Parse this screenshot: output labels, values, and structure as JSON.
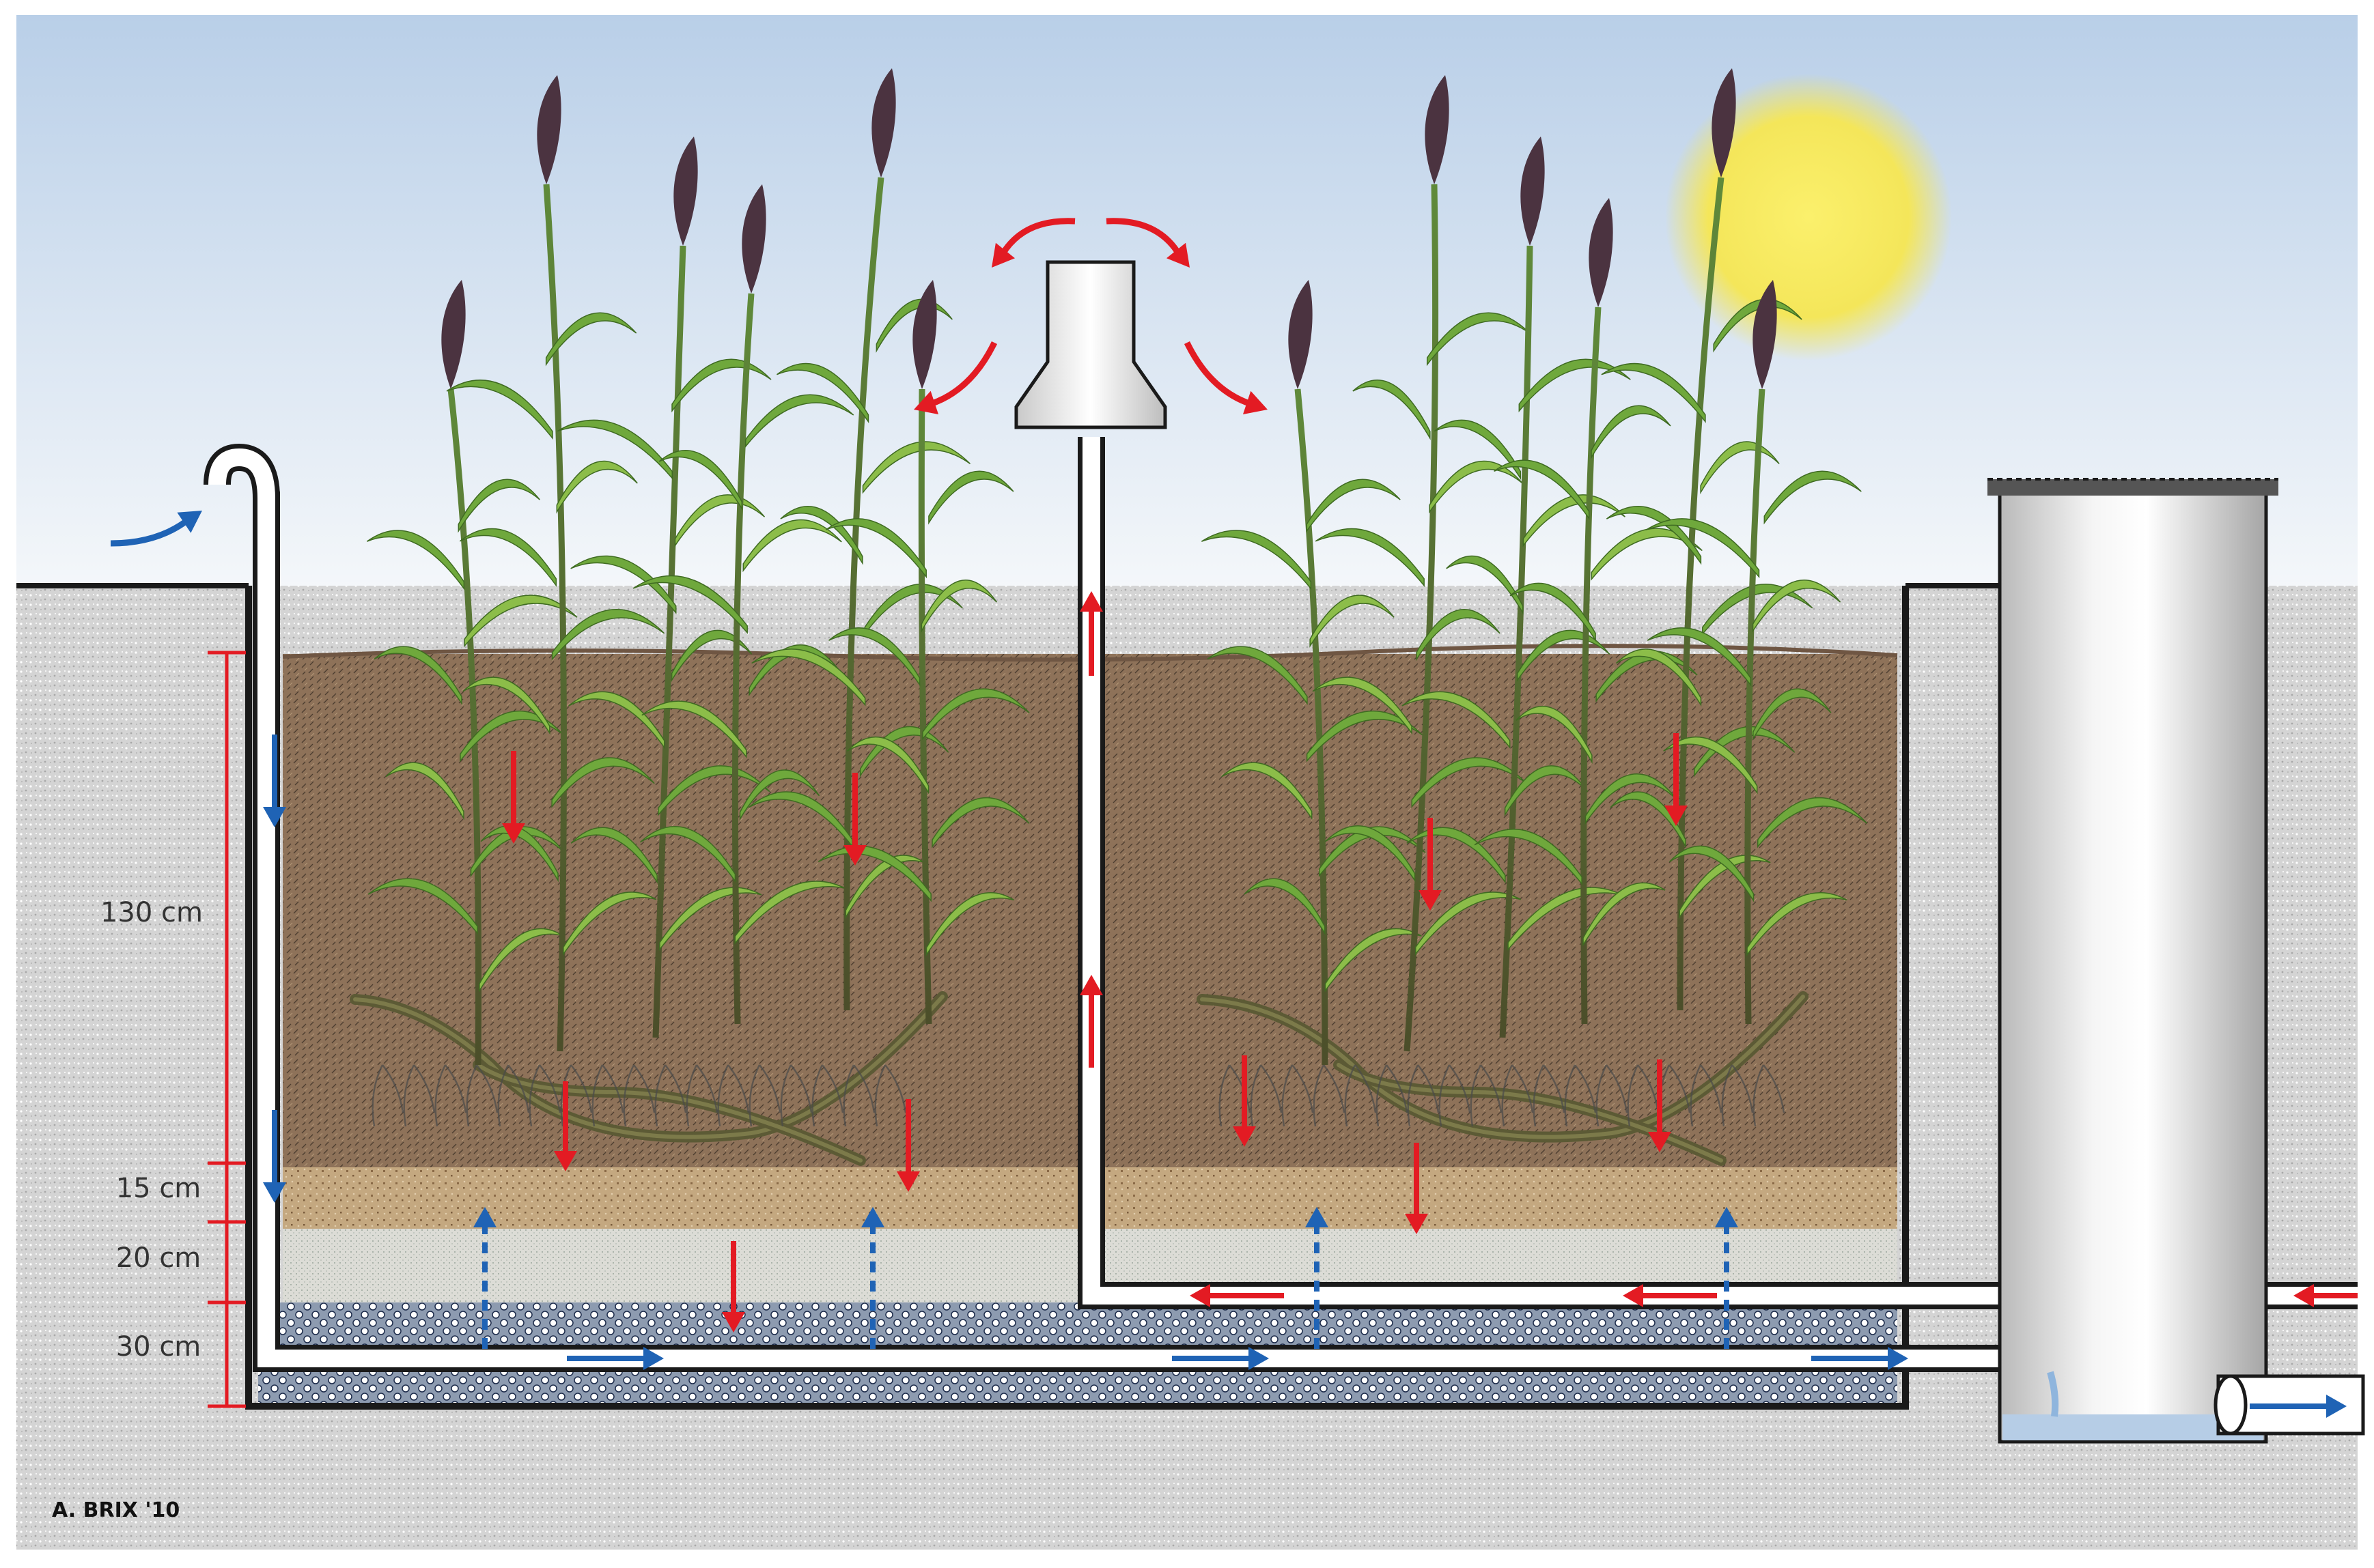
{
  "dimensions": {
    "main_layer": "130 cm",
    "sand_layer": "15 cm",
    "fine_gravel_layer": "20 cm",
    "coarse_gravel_layer": "30 cm"
  },
  "credit": "A. BRIX '10",
  "colors": {
    "sky_top": "#b9cfe8",
    "sky_bottom": "#f4f7fa",
    "ground": "#d4d4d4",
    "soil": "#8e7259",
    "sand": "#c4a880",
    "fine_gravel": "#dcdcd6",
    "coarse_gravel": "#8d9bb0",
    "air_flow_arrow": "#e31b23",
    "water_flow_arrow": "#1f63b5",
    "dimension_marker": "#e31b23",
    "sun": "#f6e75a",
    "reed_leaf": "#6fa83c",
    "reed_plume": "#4b3340",
    "pipe": "#ffffff"
  },
  "icons": [
    "sun-icon",
    "reed-plant-icon",
    "vent-cap-icon",
    "inlet-pipe-icon",
    "outlet-pipe-icon",
    "well-lid-icon"
  ]
}
